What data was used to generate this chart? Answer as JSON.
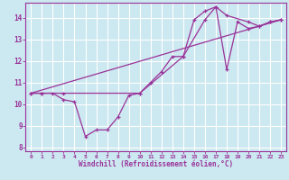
{
  "xlabel": "Windchill (Refroidissement éolien,°C)",
  "bg_color": "#cce8f0",
  "grid_color": "#ffffff",
  "line_color": "#993399",
  "xlim": [
    -0.5,
    23.5
  ],
  "ylim": [
    7.8,
    14.7
  ],
  "xticks": [
    0,
    1,
    2,
    3,
    4,
    5,
    6,
    7,
    8,
    9,
    10,
    11,
    12,
    13,
    14,
    15,
    16,
    17,
    18,
    19,
    20,
    21,
    22,
    23
  ],
  "yticks": [
    8,
    9,
    10,
    11,
    12,
    13,
    14
  ],
  "series1_x": [
    0,
    1,
    2,
    3,
    4,
    5,
    6,
    7,
    8,
    9,
    10,
    11,
    12,
    13,
    14,
    15,
    16,
    17,
    18,
    19,
    20,
    21,
    22,
    23
  ],
  "series1_y": [
    10.5,
    10.5,
    10.5,
    10.2,
    10.1,
    8.5,
    8.8,
    8.8,
    9.4,
    10.4,
    10.5,
    11.0,
    11.5,
    12.2,
    12.2,
    13.9,
    14.3,
    14.5,
    11.6,
    13.8,
    13.5,
    13.6,
    13.8,
    13.9
  ],
  "series2_x": [
    0,
    1,
    3,
    10,
    14,
    16,
    17,
    18,
    20,
    21,
    22,
    23
  ],
  "series2_y": [
    10.5,
    10.5,
    10.5,
    10.5,
    12.2,
    13.9,
    14.5,
    14.1,
    13.8,
    13.6,
    13.8,
    13.9
  ],
  "series3_x": [
    0,
    23
  ],
  "series3_y": [
    10.5,
    13.9
  ]
}
